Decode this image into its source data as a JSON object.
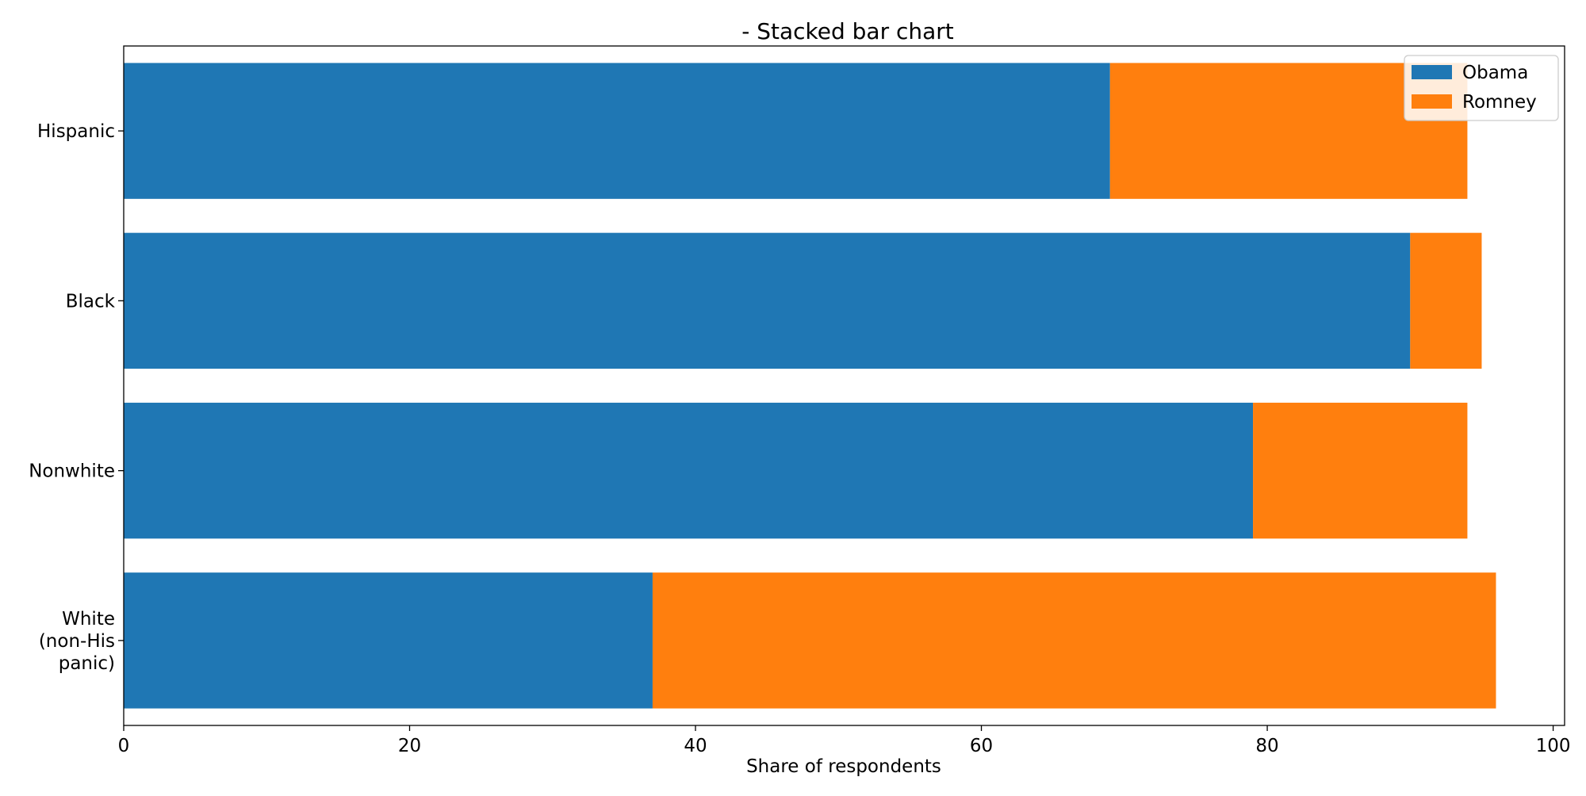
{
  "chart_data": {
    "type": "bar",
    "orientation": "horizontal",
    "stacked": true,
    "title": "- Stacked bar chart",
    "xlabel": "Share of respondents",
    "ylabel": "",
    "xlim": [
      0,
      100.8
    ],
    "xticks": [
      0,
      20,
      40,
      60,
      80,
      100
    ],
    "categories": [
      [
        "White",
        "(non-His",
        "panic)"
      ],
      [
        "Nonwhite"
      ],
      [
        "Black"
      ],
      [
        "Hispanic"
      ]
    ],
    "series": [
      {
        "name": "Obama",
        "color": "#1f77b4",
        "values": [
          37,
          79,
          90,
          69
        ]
      },
      {
        "name": "Romney",
        "color": "#ff7f0e",
        "values": [
          59,
          15,
          5,
          25
        ]
      }
    ],
    "grid": false,
    "legend": "top-right"
  }
}
